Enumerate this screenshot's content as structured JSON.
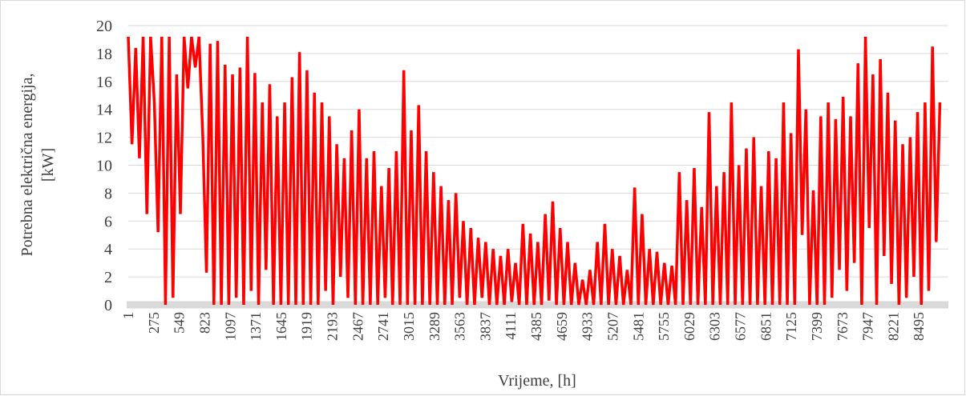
{
  "chart_data": {
    "type": "line",
    "x_label": "Vrijeme, [h]",
    "y_label": [
      "Potrebna električna energija,",
      "[kW]"
    ],
    "xlim": [
      1,
      8760
    ],
    "xticks": [
      1,
      275,
      549,
      823,
      1097,
      1371,
      1645,
      1919,
      2193,
      2467,
      2741,
      3015,
      3289,
      3563,
      3837,
      4111,
      4385,
      4659,
      4933,
      5207,
      5481,
      5755,
      6029,
      6303,
      6577,
      6851,
      7125,
      7399,
      7673,
      7947,
      8221,
      8495
    ],
    "ylim": [
      0,
      20
    ],
    "yticks": [
      0,
      2,
      4,
      6,
      8,
      10,
      12,
      14,
      16,
      18,
      20
    ],
    "grid": true,
    "x": [
      1,
      41,
      81,
      121,
      161,
      201,
      241,
      281,
      321,
      361,
      401,
      441,
      481,
      521,
      561,
      601,
      641,
      681,
      721,
      761,
      801,
      841,
      881,
      921,
      961,
      1001,
      1041,
      1081,
      1121,
      1161,
      1201,
      1241,
      1281,
      1321,
      1361,
      1401,
      1441,
      1481,
      1521,
      1561,
      1601,
      1641,
      1681,
      1721,
      1761,
      1801,
      1841,
      1881,
      1921,
      1961,
      2001,
      2041,
      2081,
      2121,
      2161,
      2201,
      2241,
      2281,
      2321,
      2361,
      2401,
      2441,
      2481,
      2521,
      2561,
      2601,
      2641,
      2681,
      2721,
      2761,
      2801,
      2841,
      2881,
      2921,
      2961,
      3001,
      3041,
      3081,
      3121,
      3161,
      3201,
      3241,
      3281,
      3321,
      3361,
      3401,
      3441,
      3481,
      3521,
      3561,
      3601,
      3641,
      3681,
      3721,
      3761,
      3801,
      3841,
      3881,
      3921,
      3961,
      4001,
      4041,
      4081,
      4121,
      4161,
      4201,
      4241,
      4281,
      4321,
      4361,
      4401,
      4441,
      4481,
      4521,
      4561,
      4601,
      4641,
      4681,
      4721,
      4761,
      4801,
      4841,
      4881,
      4921,
      4961,
      5001,
      5041,
      5081,
      5121,
      5161,
      5201,
      5241,
      5281,
      5321,
      5361,
      5401,
      5441,
      5481,
      5521,
      5561,
      5601,
      5641,
      5681,
      5721,
      5761,
      5801,
      5841,
      5881,
      5921,
      5961,
      6001,
      6041,
      6081,
      6121,
      6161,
      6201,
      6241,
      6281,
      6321,
      6361,
      6401,
      6441,
      6481,
      6521,
      6561,
      6601,
      6641,
      6681,
      6721,
      6761,
      6801,
      6841,
      6881,
      6921,
      6961,
      7001,
      7041,
      7081,
      7121,
      7161,
      7201,
      7241,
      7281,
      7321,
      7361,
      7401,
      7441,
      7481,
      7521,
      7561,
      7601,
      7641,
      7681,
      7721,
      7761,
      7801,
      7841,
      7881,
      7921,
      7961,
      8001,
      8041,
      8081,
      8121,
      8161,
      8201,
      8241,
      8281,
      8321,
      8361,
      8401,
      8441,
      8481,
      8521,
      8561,
      8601,
      8641,
      8681,
      8721
    ],
    "series": [
      {
        "name": "Potrebna električna energija",
        "color": "#ff0000",
        "values": [
          19.2,
          11.5,
          18.4,
          10.5,
          19.2,
          6.5,
          19.2,
          14.5,
          5.2,
          19.2,
          0,
          19.2,
          0.5,
          16.5,
          6.5,
          19.2,
          15.5,
          19.2,
          17,
          19.2,
          12.2,
          2.3,
          18.7,
          0,
          18.9,
          0,
          17.2,
          0,
          16.5,
          0.5,
          17,
          0,
          19.2,
          1,
          16.6,
          0,
          14.5,
          2.5,
          15.8,
          0,
          13.5,
          0,
          14.5,
          0,
          16.3,
          0,
          18.1,
          0,
          16.8,
          0,
          15.2,
          0,
          14.5,
          1,
          13.5,
          0,
          11.5,
          2,
          10.5,
          0.5,
          12.5,
          0,
          14,
          0,
          10.5,
          0,
          11,
          0,
          8.5,
          0.5,
          9.8,
          0,
          11,
          0,
          16.8,
          0,
          12.5,
          0,
          14.3,
          0,
          11,
          0,
          9.5,
          0,
          8.5,
          0,
          7.5,
          0,
          8,
          0.5,
          6,
          0,
          5.5,
          0,
          4.8,
          0.5,
          4.5,
          0,
          4,
          0,
          3.5,
          0,
          4,
          0.2,
          3,
          0,
          5.8,
          0,
          5.1,
          0,
          4.5,
          0,
          6.5,
          0.3,
          7.4,
          0,
          5.5,
          0,
          4.5,
          0,
          3,
          0,
          1.8,
          0,
          2.5,
          0,
          4.5,
          0,
          5.8,
          0,
          4,
          0,
          3.5,
          0,
          2.5,
          0,
          8.4,
          0,
          6.5,
          0,
          4,
          0,
          3.8,
          0,
          3,
          0,
          2.8,
          0,
          9.5,
          0,
          7.5,
          0,
          9.8,
          0,
          7,
          0,
          13.8,
          0,
          8.5,
          0,
          9.5,
          0,
          14.5,
          0,
          10,
          0,
          11.2,
          0,
          12,
          0,
          8.5,
          0,
          11,
          0,
          10.5,
          0,
          14.5,
          0,
          12.3,
          0,
          18.3,
          5,
          14,
          0,
          8.2,
          0,
          13.5,
          0,
          14.5,
          0.5,
          13.3,
          2.5,
          14.9,
          1,
          13.5,
          3,
          17.3,
          0,
          19.2,
          5.5,
          16.5,
          0,
          17.6,
          3.5,
          15.2,
          1.5,
          13.2,
          0,
          11.5,
          0.5,
          12,
          2,
          13.8,
          0,
          14.5,
          1,
          18.5,
          4.5,
          14.5
        ]
      }
    ]
  }
}
